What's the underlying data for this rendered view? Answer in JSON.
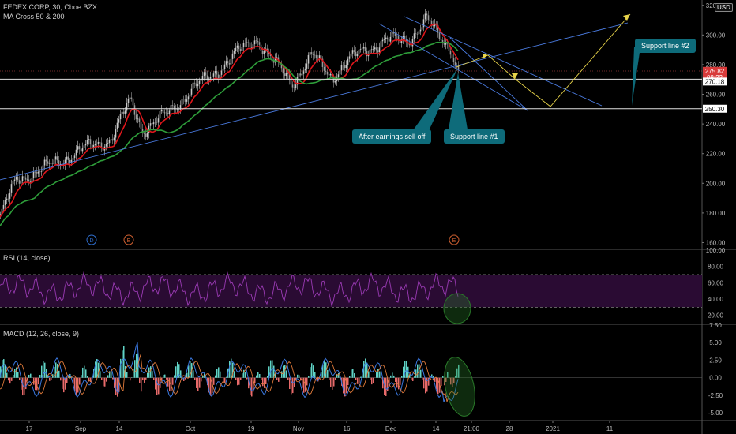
{
  "header": {
    "symbol_line": "FEDEX CORP, 30, Cboe BZX",
    "indicator_line": "MA Cross 50 & 200",
    "currency": "USD"
  },
  "colors": {
    "background": "#000000",
    "candle_up": "#c8c8c8",
    "candle_down": "#9a9a9a",
    "ma50": "#e0161b",
    "ma200": "#2e9e3a",
    "trendline": "#4a7be0",
    "projection": "#e8d44a",
    "rsi": "#9b3bb5",
    "rsi_band": "#2a0b33",
    "macd": "#3a78e0",
    "signal": "#e07a3a",
    "hist_up": "#5fd3c6",
    "hist_down": "#e86a6a",
    "callout": "#0e6b7a",
    "circle": "#2a7a2a",
    "event_d": "#2f6fd1",
    "event_e": "#d06030"
  },
  "chart_data": {
    "type": "candlestick",
    "title": "FEDEX CORP, 30, Cboe BZX",
    "x_ticks": [
      "17",
      "Sep",
      "14",
      "Oct",
      "19",
      "Nov",
      "16",
      "Dec",
      "14",
      "21:00",
      "28",
      "2021",
      "11"
    ],
    "y_ticks": [
      "160.00",
      "180.00",
      "200.00",
      "220.00",
      "240.00",
      "260.00",
      "280.00",
      "300.00",
      "320.00"
    ],
    "ylim": [
      156,
      322
    ],
    "price_tags": [
      {
        "label": "275.82",
        "value": 275.82,
        "style": "red"
      },
      {
        "label": "08:22",
        "value": 271.4,
        "style": "red"
      },
      {
        "label": "270.18",
        "value": 268.6,
        "style": "white"
      },
      {
        "label": "250.30",
        "value": 250.3,
        "style": "white"
      }
    ],
    "horizontal_levels": [
      270.18,
      250.3
    ],
    "events": [
      {
        "label": "D",
        "x_index": 116
      },
      {
        "label": "E",
        "x_index": 163
      },
      {
        "label": "E",
        "x_index": 575
      }
    ],
    "series_summary": {
      "ma50": "red moving average",
      "ma200": "green moving average"
    },
    "annotations": [
      {
        "text": "Support line #2"
      },
      {
        "text": "After earnings sell off"
      },
      {
        "text": "Support line #1"
      }
    ],
    "rsi": {
      "label": "RSI (14, close)",
      "ylim": [
        10,
        100
      ],
      "ticks": [
        "100.00",
        "80.00",
        "60.00",
        "40.00",
        "20.00"
      ],
      "upper_band": 70,
      "lower_band": 30
    },
    "macd": {
      "label": "MACD (12, 26, close, 9)",
      "ylim": [
        -6,
        7.5
      ],
      "ticks": [
        "7.50",
        "5.00",
        "2.50",
        "0.00",
        "-2.50",
        "-5.00"
      ]
    }
  }
}
